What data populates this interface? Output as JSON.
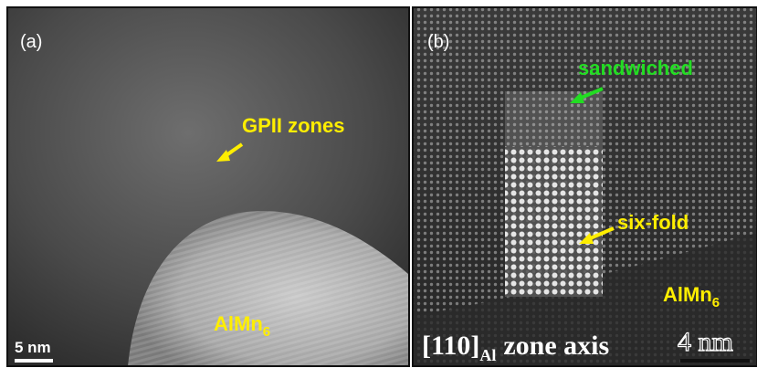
{
  "panels": [
    {
      "label": "(a)",
      "annotations": [
        {
          "text": "GPII zones"
        }
      ],
      "phase": {
        "text": "AlMn",
        "subscript": "6"
      },
      "scale_bar": "5 nm"
    },
    {
      "label": "(b)",
      "annotations": [
        {
          "text": "sandwiched"
        },
        {
          "text": "six-fold"
        }
      ],
      "phase": {
        "text": "AlMn",
        "subscript": "6"
      },
      "zone_axis": {
        "text": "[110]",
        "subscript": "Al",
        "suffix": "zone axis"
      },
      "scale_bar": "4 nm"
    }
  ]
}
